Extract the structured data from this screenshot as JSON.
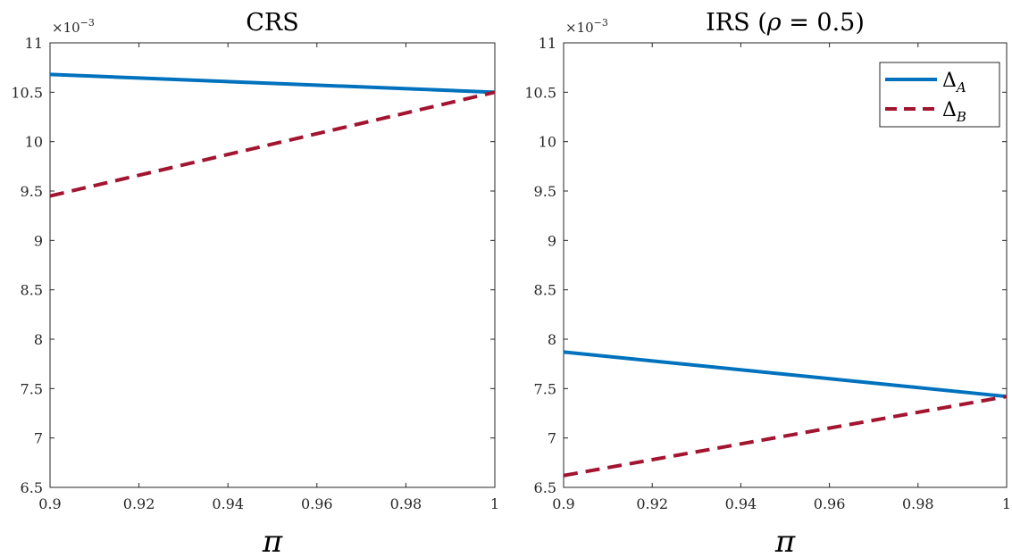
{
  "chart_data": [
    {
      "type": "line",
      "title": "CRS",
      "xlabel": "π",
      "ylabel": "",
      "y_exponent_label": "×10⁻³",
      "xlim": [
        0.9,
        1.0
      ],
      "ylim": [
        6.5,
        11
      ],
      "x_ticks": [
        0.9,
        0.92,
        0.94,
        0.96,
        0.98,
        1.0
      ],
      "x_tick_labels": [
        "0.9",
        "0.92",
        "0.94",
        "0.96",
        "0.98",
        "1"
      ],
      "y_ticks": [
        6.5,
        7,
        7.5,
        8,
        8.5,
        9,
        9.5,
        10,
        10.5,
        11
      ],
      "y_tick_labels": [
        "6.5",
        "7",
        "7.5",
        "8",
        "8.5",
        "9",
        "9.5",
        "10",
        "10.5",
        "11"
      ],
      "grid": false,
      "legend": null,
      "series": [
        {
          "name": "Δ_A",
          "x": [
            0.9,
            1.0
          ],
          "y": [
            10.68,
            10.5
          ],
          "color": "#0072bd",
          "style": "solid"
        },
        {
          "name": "Δ_B",
          "x": [
            0.9,
            1.0
          ],
          "y": [
            9.45,
            10.5
          ],
          "color": "#a2142f",
          "style": "dashed"
        }
      ]
    },
    {
      "type": "line",
      "title": "IRS (ρ = 0.5)",
      "xlabel": "π",
      "ylabel": "",
      "y_exponent_label": "×10⁻³",
      "xlim": [
        0.9,
        1.0
      ],
      "ylim": [
        6.5,
        11
      ],
      "x_ticks": [
        0.9,
        0.92,
        0.94,
        0.96,
        0.98,
        1.0
      ],
      "x_tick_labels": [
        "0.9",
        "0.92",
        "0.94",
        "0.96",
        "0.98",
        "1"
      ],
      "y_ticks": [
        6.5,
        7,
        7.5,
        8,
        8.5,
        9,
        9.5,
        10,
        10.5,
        11
      ],
      "y_tick_labels": [
        "6.5",
        "7",
        "7.5",
        "8",
        "8.5",
        "9",
        "9.5",
        "10",
        "10.5",
        "11"
      ],
      "grid": false,
      "legend": "top-right",
      "series": [
        {
          "name": "Δ_A",
          "x": [
            0.9,
            1.0
          ],
          "y": [
            7.87,
            7.42
          ],
          "color": "#0072bd",
          "style": "solid"
        },
        {
          "name": "Δ_B",
          "x": [
            0.9,
            1.0
          ],
          "y": [
            6.62,
            7.42
          ],
          "color": "#a2142f",
          "style": "dashed"
        }
      ]
    }
  ]
}
